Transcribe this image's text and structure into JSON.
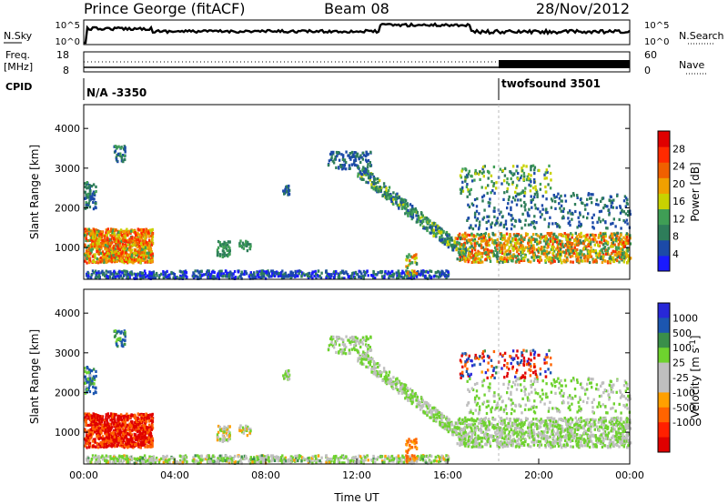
{
  "header": {
    "title": "Prince George (fitACF)",
    "beam": "Beam 08",
    "date": "28/Nov/2012"
  },
  "noise_panel": {
    "left_label": "N.Sky",
    "right_label": "N.Search",
    "left_ticks": [
      "10^5",
      "10^0"
    ],
    "right_ticks": [
      "10^5",
      "10^0"
    ]
  },
  "freq_panel": {
    "left_label": "Freq.",
    "left_unit": "[MHz]",
    "right_label": "Nave",
    "left_ticks": [
      "18",
      "8"
    ],
    "right_ticks": [
      "60",
      "0"
    ]
  },
  "cpid_panel": {
    "label": "CPID",
    "segments": [
      "N/A -3350",
      "twofsound 3501"
    ]
  },
  "colors": {
    "power": [
      "#1a1aff",
      "#1c4aa8",
      "#2e7d5a",
      "#3f9e55",
      "#c8d200",
      "#f0a000",
      "#f06000",
      "#ff2a00",
      "#e00000"
    ],
    "velocity": [
      "#2828d8",
      "#1c56b0",
      "#3a8f4a",
      "#6ed22e",
      "#bfbfbf",
      "#bfbfbf",
      "#ffa000",
      "#ff6400",
      "#ff2000",
      "#e00000"
    ]
  },
  "chart_data": [
    {
      "type": "heatmap",
      "title": "",
      "ylabel": "Slant Range [km]",
      "ylim": [
        200,
        4600
      ],
      "yticks": [
        "1000",
        "2000",
        "3000",
        "4000"
      ],
      "xlim": [
        "00:00",
        "24:00"
      ],
      "colorbar_label": "Power [dB]",
      "colorbar_ticks": [
        "4",
        "8",
        "12",
        "16",
        "20",
        "24",
        "28"
      ],
      "colorbar_range": [
        0,
        32
      ]
    },
    {
      "type": "heatmap",
      "title": "",
      "xlabel": "Time UT",
      "ylabel": "Slant Range [km]",
      "ylim": [
        200,
        4600
      ],
      "yticks": [
        "1000",
        "2000",
        "3000",
        "4000"
      ],
      "xticks": [
        "00:00",
        "04:00",
        "08:00",
        "12:00",
        "16:00",
        "20:00",
        "00:00"
      ],
      "colorbar_label": "Velocity [m s",
      "colorbar_label_sup": "-1",
      "colorbar_label_end": "]",
      "colorbar_ticks": [
        "1000",
        "500",
        "100",
        "25",
        "-25",
        "-100",
        "-500",
        "-1000"
      ]
    }
  ]
}
